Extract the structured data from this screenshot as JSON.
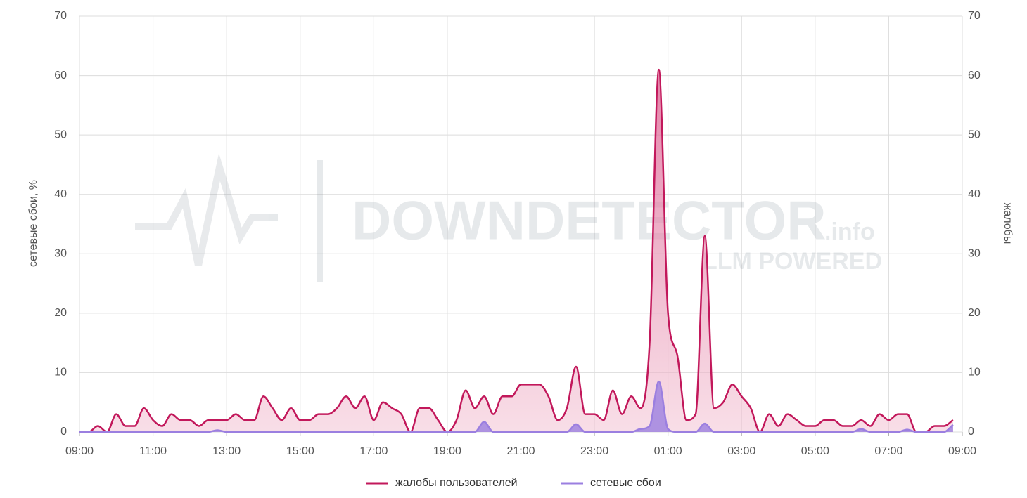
{
  "chart_data": {
    "type": "area",
    "ylabel": "сетевые сбои, %",
    "y2label": "жалобы",
    "watermark": {
      "brand": "DOWNDETECTOR",
      "suffix": ".info",
      "tagline": "LLM POWERED"
    },
    "xlim": [
      9,
      33
    ],
    "xticks": [
      {
        "value": 9,
        "label": "09:00"
      },
      {
        "value": 11,
        "label": "11:00"
      },
      {
        "value": 13,
        "label": "13:00"
      },
      {
        "value": 15,
        "label": "15:00"
      },
      {
        "value": 17,
        "label": "17:00"
      },
      {
        "value": 19,
        "label": "19:00"
      },
      {
        "value": 21,
        "label": "21:00"
      },
      {
        "value": 23,
        "label": "23:00"
      },
      {
        "value": 25,
        "label": "01:00"
      },
      {
        "value": 27,
        "label": "03:00"
      },
      {
        "value": 29,
        "label": "05:00"
      },
      {
        "value": 31,
        "label": "07:00"
      },
      {
        "value": 33,
        "label": "09:00"
      }
    ],
    "ylim": [
      0,
      70
    ],
    "yticks": [
      0,
      10,
      20,
      30,
      40,
      50,
      60,
      70
    ],
    "y2lim": [
      0,
      70
    ],
    "y2ticks": [
      0,
      10,
      20,
      30,
      40,
      50,
      60,
      70
    ],
    "grid": true,
    "x": [
      9,
      9.25,
      9.5,
      9.75,
      10,
      10.25,
      10.5,
      10.75,
      11,
      11.25,
      11.5,
      11.75,
      12,
      12.25,
      12.5,
      12.75,
      13,
      13.25,
      13.5,
      13.75,
      14,
      14.25,
      14.5,
      14.75,
      15,
      15.25,
      15.5,
      15.75,
      16,
      16.25,
      16.5,
      16.75,
      17,
      17.25,
      17.5,
      17.75,
      18,
      18.25,
      18.5,
      18.75,
      19,
      19.25,
      19.5,
      19.75,
      20,
      20.25,
      20.5,
      20.75,
      21,
      21.25,
      21.5,
      21.75,
      22,
      22.25,
      22.5,
      22.75,
      23,
      23.25,
      23.5,
      23.75,
      24,
      24.25,
      24.5,
      24.75,
      25,
      25.25,
      25.5,
      25.75,
      26,
      26.25,
      26.5,
      26.75,
      27,
      27.25,
      27.5,
      27.75,
      28,
      28.25,
      28.5,
      28.75,
      29,
      29.25,
      29.5,
      29.75,
      30,
      30.25,
      30.5,
      30.75,
      31,
      31.25,
      31.5,
      31.75,
      32,
      32.25,
      32.5,
      32.75
    ],
    "series": [
      {
        "name": "жалобы пользователей",
        "color": "#c2185b",
        "axis": "y2",
        "values": [
          0,
          0,
          1,
          0,
          3,
          1,
          1,
          4,
          2,
          1,
          3,
          2,
          2,
          1,
          2,
          2,
          2,
          3,
          2,
          2,
          6,
          4,
          2,
          4,
          2,
          2,
          3,
          3,
          4,
          6,
          4,
          6,
          2,
          5,
          4,
          3,
          0,
          4,
          4,
          2,
          0,
          2,
          7,
          4,
          6,
          3,
          6,
          6,
          8,
          8,
          8,
          6,
          2,
          4,
          11,
          3,
          3,
          2,
          7,
          3,
          6,
          4,
          15,
          61,
          20,
          13,
          2,
          3,
          33,
          4,
          5,
          8,
          6,
          4,
          0,
          3,
          1,
          3,
          2,
          1,
          1,
          2,
          2,
          1,
          1,
          2,
          1,
          3,
          2,
          3,
          3,
          0,
          0,
          1,
          1,
          2
        ]
      },
      {
        "name": "сетевые сбои",
        "color": "#9b7fe0",
        "axis": "y",
        "values": [
          0,
          0,
          0,
          0,
          0,
          0,
          0,
          0,
          0,
          0,
          0,
          0,
          0,
          0,
          0,
          0.3,
          0,
          0,
          0,
          0,
          0,
          0,
          0,
          0,
          0,
          0,
          0,
          0,
          0,
          0,
          0,
          0,
          0,
          0,
          0,
          0,
          0,
          0,
          0,
          0,
          0,
          0,
          0,
          0,
          1.7,
          0,
          0,
          0,
          0,
          0,
          0,
          0,
          0,
          0,
          1.3,
          0,
          0,
          0,
          0,
          0,
          0,
          0.5,
          1,
          8.5,
          0.5,
          0,
          0,
          0,
          1.4,
          0,
          0,
          0,
          0,
          0,
          0,
          0,
          0,
          0,
          0,
          0,
          0,
          0,
          0,
          0,
          0,
          0.5,
          0,
          0,
          0,
          0,
          0.4,
          0,
          0,
          0,
          0,
          1.2
        ]
      }
    ]
  }
}
